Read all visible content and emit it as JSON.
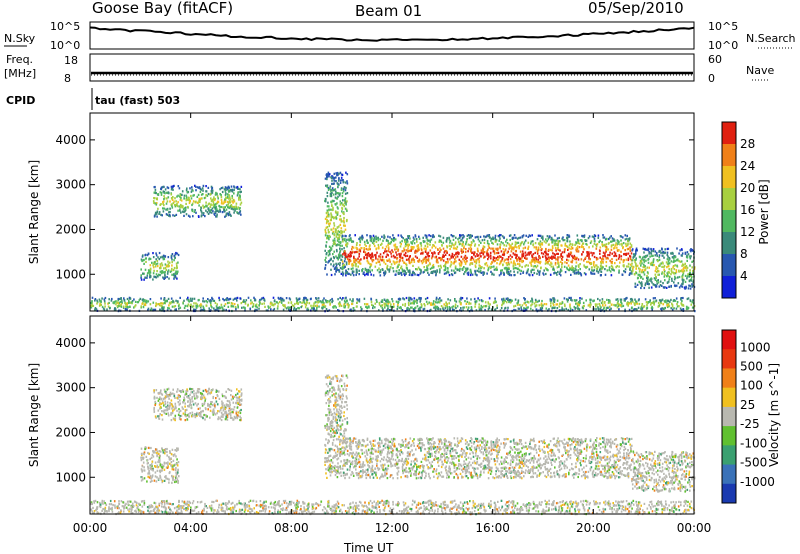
{
  "header": {
    "station": "Goose Bay (fitACF)",
    "beam": "Beam 01",
    "date": "05/Sep/2010"
  },
  "top_panels": {
    "nsky_label": "N.Sky",
    "nsky_scale": [
      "10^5",
      "10^0"
    ],
    "nsearch_label": "N.Search",
    "nsearch_scale": [
      "10^5",
      "10^0"
    ],
    "freq_label": "Freq.",
    "freq_unit": "[MHz]",
    "freq_scale": [
      "18",
      "8"
    ],
    "nave_label": "Nave",
    "nave_scale": [
      "60",
      "0"
    ],
    "cpid_label": "CPID",
    "cpid_value": "tau (fast) 503"
  },
  "chart_data": [
    {
      "type": "heatmap",
      "name": "power",
      "ylabel": "Slant Range [km]",
      "yticks": [
        1000,
        2000,
        3000,
        4000
      ],
      "ylim": [
        180,
        4600
      ],
      "xlim": [
        0,
        24
      ],
      "colorbar": {
        "label": "Power [dB]",
        "ticks": [
          "4",
          "8",
          "12",
          "16",
          "20",
          "24",
          "28"
        ],
        "colors": [
          "#1020d8",
          "#2858b0",
          "#3a8a7a",
          "#50b860",
          "#a8d040",
          "#f0c020",
          "#f08018",
          "#e02010"
        ]
      },
      "regions": [
        {
          "t": [
            2.0,
            3.5
          ],
          "r": [
            900,
            1500
          ]
        },
        {
          "t": [
            2.5,
            6.0
          ],
          "r": [
            2300,
            3000
          ]
        },
        {
          "t": [
            9.3,
            10.2
          ],
          "r": [
            1000,
            3300
          ]
        },
        {
          "t": [
            10.0,
            21.5
          ],
          "r": [
            1000,
            1900
          ]
        },
        {
          "t": [
            21.5,
            24.0
          ],
          "r": [
            700,
            1600
          ]
        },
        {
          "t": [
            0.0,
            24.0
          ],
          "r": [
            200,
            500
          ]
        }
      ]
    },
    {
      "type": "heatmap",
      "name": "velocity",
      "ylabel": "Slant Range [km]",
      "yticks": [
        1000,
        2000,
        3000,
        4000
      ],
      "ylim": [
        180,
        4600
      ],
      "xlim": [
        0,
        24
      ],
      "xticks": [
        "00:00",
        "04:00",
        "08:00",
        "12:00",
        "16:00",
        "20:00",
        "00:00"
      ],
      "xlabel": "Time UT",
      "colorbar": {
        "label": "Velocity [m s^-1]",
        "ticks": [
          "1000",
          "500",
          "100",
          "25",
          "-25",
          "-100",
          "-500",
          "-1000"
        ],
        "colors": [
          "#1a3ab0",
          "#3a72b8",
          "#3aa070",
          "#60c030",
          "#b8b8b0",
          "#f0c020",
          "#f08018",
          "#e83810",
          "#e01010"
        ]
      },
      "regions": [
        {
          "t": [
            2.0,
            3.5
          ],
          "r": [
            900,
            1700
          ]
        },
        {
          "t": [
            2.5,
            6.0
          ],
          "r": [
            2300,
            3000
          ]
        },
        {
          "t": [
            9.3,
            10.2
          ],
          "r": [
            1000,
            3300
          ]
        },
        {
          "t": [
            10.0,
            21.5
          ],
          "r": [
            1000,
            1900
          ]
        },
        {
          "t": [
            21.5,
            24.0
          ],
          "r": [
            700,
            1600
          ]
        },
        {
          "t": [
            0.0,
            24.0
          ],
          "r": [
            200,
            500
          ]
        }
      ]
    }
  ]
}
